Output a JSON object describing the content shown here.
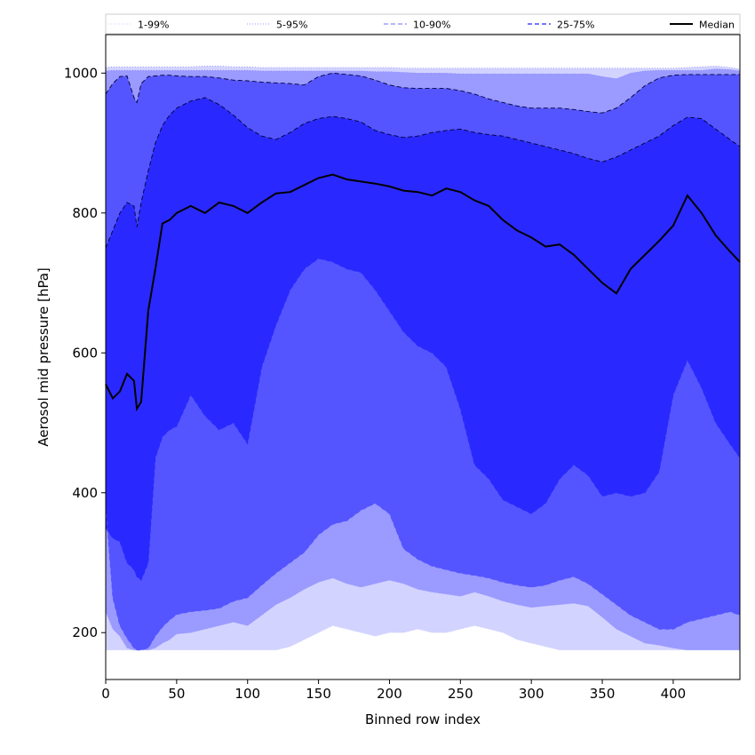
{
  "chart_data": {
    "type": "area",
    "title": "",
    "xlabel": "Binned row index",
    "ylabel": "Aerosol mid pressure [hPa]",
    "xlim": [
      0,
      447
    ],
    "ylim": [
      133,
      1055
    ],
    "x_ticks": [
      0,
      50,
      100,
      150,
      200,
      250,
      300,
      350,
      400
    ],
    "y_ticks": [
      200,
      400,
      600,
      800,
      1000
    ],
    "grid": false,
    "legend_position": "top, spanning full width",
    "x": [
      0,
      5,
      10,
      15,
      20,
      22,
      25,
      30,
      35,
      40,
      45,
      50,
      60,
      70,
      80,
      90,
      100,
      110,
      120,
      130,
      140,
      150,
      160,
      170,
      180,
      190,
      200,
      210,
      220,
      230,
      240,
      250,
      260,
      270,
      280,
      290,
      300,
      310,
      320,
      330,
      340,
      350,
      360,
      370,
      380,
      390,
      400,
      410,
      420,
      430,
      440,
      447
    ],
    "series": [
      {
        "name": "1-99%",
        "role": "percentile band",
        "style": "dotted",
        "fill_color": "#d3d3ff",
        "lower": [
          175,
          175,
          175,
          175,
          175,
          175,
          175,
          175,
          175,
          175,
          175,
          175,
          175,
          175,
          175,
          175,
          175,
          175,
          175,
          180,
          190,
          200,
          210,
          205,
          200,
          195,
          200,
          200,
          205,
          200,
          200,
          205,
          210,
          205,
          200,
          190,
          185,
          180,
          175,
          175,
          175,
          175,
          175,
          175,
          175,
          175,
          175,
          175,
          175,
          175,
          175,
          175
        ],
        "upper": [
          1008,
          1009,
          1009,
          1009,
          1009,
          1009,
          1009,
          1009,
          1009,
          1009,
          1009,
          1009,
          1009,
          1010,
          1010,
          1009,
          1009,
          1008,
          1008,
          1008,
          1008,
          1008,
          1008,
          1008,
          1008,
          1008,
          1008,
          1007,
          1007,
          1007,
          1007,
          1007,
          1007,
          1007,
          1007,
          1007,
          1007,
          1007,
          1007,
          1007,
          1007,
          1007,
          1007,
          1007,
          1007,
          1007,
          1007,
          1008,
          1009,
          1010,
          1008,
          1006
        ]
      },
      {
        "name": "5-95%",
        "role": "percentile band",
        "style": "dotted",
        "fill_color": "#9a9aff",
        "lower": [
          230,
          205,
          195,
          178,
          175,
          175,
          175,
          175,
          178,
          185,
          190,
          198,
          200,
          205,
          210,
          215,
          210,
          225,
          240,
          250,
          262,
          272,
          278,
          270,
          265,
          270,
          275,
          270,
          262,
          258,
          255,
          252,
          258,
          252,
          245,
          240,
          236,
          238,
          240,
          242,
          238,
          222,
          205,
          195,
          185,
          182,
          178,
          175,
          175,
          175,
          175,
          175
        ],
        "upper": [
          1003,
          1004,
          1004,
          1004,
          1004,
          1004,
          1004,
          1004,
          1004,
          1004,
          1004,
          1004,
          1004,
          1004,
          1004,
          1004,
          1004,
          1003,
          1003,
          1003,
          1003,
          1003,
          1003,
          1003,
          1003,
          1002,
          1002,
          1001,
          1000,
          1000,
          1000,
          999,
          999,
          999,
          999,
          999,
          999,
          999,
          999,
          999,
          999,
          995,
          992,
          1000,
          1003,
          1004,
          1004,
          1004,
          1004,
          1006,
          1005,
          1003
        ]
      },
      {
        "name": "10-90%",
        "role": "percentile band",
        "style": "dashed",
        "fill_color": "#5555ff",
        "lower": [
          380,
          250,
          210,
          192,
          178,
          175,
          175,
          178,
          195,
          208,
          218,
          226,
          230,
          232,
          235,
          245,
          250,
          268,
          285,
          300,
          315,
          340,
          355,
          360,
          375,
          385,
          370,
          320,
          305,
          295,
          290,
          285,
          282,
          278,
          272,
          268,
          265,
          268,
          275,
          280,
          270,
          255,
          240,
          225,
          215,
          205,
          205,
          215,
          220,
          225,
          230,
          225
        ],
        "upper": [
          970,
          985,
          995,
          996,
          965,
          958,
          985,
          995,
          996,
          997,
          997,
          996,
          995,
          995,
          993,
          990,
          989,
          987,
          986,
          985,
          983,
          995,
          1000,
          998,
          996,
          990,
          983,
          979,
          978,
          978,
          978,
          975,
          970,
          963,
          958,
          953,
          950,
          950,
          950,
          948,
          945,
          943,
          950,
          965,
          982,
          993,
          997,
          998,
          998,
          998,
          998,
          998
        ]
      },
      {
        "name": "25-75%",
        "role": "percentile band",
        "style": "dashed",
        "fill_color": "#2929ff",
        "lower": [
          350,
          335,
          330,
          300,
          290,
          280,
          275,
          300,
          450,
          480,
          490,
          495,
          540,
          510,
          490,
          500,
          470,
          580,
          640,
          690,
          720,
          735,
          730,
          720,
          715,
          690,
          660,
          630,
          610,
          600,
          580,
          520,
          440,
          420,
          390,
          380,
          370,
          385,
          420,
          440,
          425,
          395,
          400,
          395,
          400,
          430,
          540,
          590,
          550,
          500,
          470,
          450
        ],
        "upper": [
          750,
          775,
          800,
          815,
          810,
          780,
          815,
          860,
          900,
          925,
          940,
          950,
          960,
          965,
          955,
          940,
          922,
          910,
          905,
          915,
          928,
          935,
          938,
          935,
          930,
          918,
          912,
          908,
          910,
          915,
          918,
          920,
          915,
          912,
          910,
          905,
          900,
          895,
          890,
          885,
          878,
          873,
          880,
          890,
          900,
          910,
          925,
          937,
          935,
          920,
          905,
          895
        ]
      },
      {
        "name": "Median",
        "role": "line",
        "style": "solid",
        "line_color": "#000000",
        "values": [
          555,
          535,
          545,
          570,
          560,
          520,
          530,
          660,
          720,
          785,
          790,
          800,
          810,
          800,
          815,
          810,
          800,
          815,
          828,
          830,
          840,
          850,
          855,
          848,
          845,
          842,
          838,
          832,
          830,
          825,
          835,
          830,
          818,
          810,
          790,
          775,
          765,
          752,
          755,
          740,
          720,
          700,
          685,
          720,
          740,
          760,
          782,
          825,
          800,
          768,
          745,
          730
        ]
      }
    ]
  }
}
